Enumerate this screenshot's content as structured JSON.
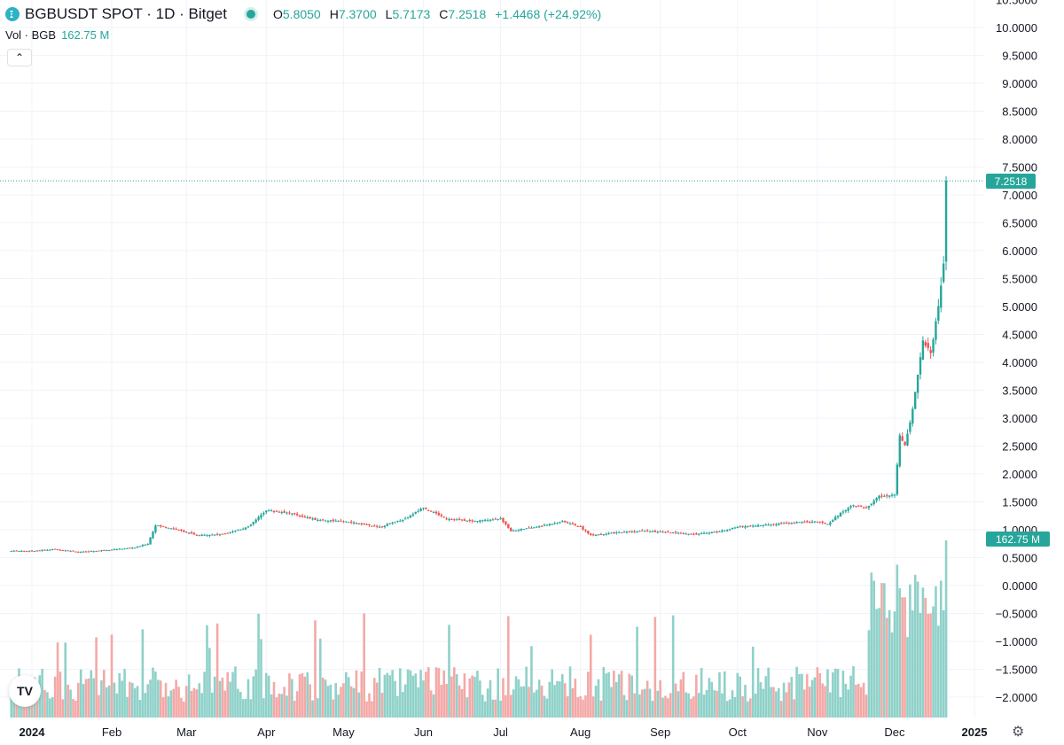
{
  "header": {
    "title": "BGBUSDT SPOT · 1D · Bitget",
    "o_label": "O",
    "o_value": "5.8050",
    "h_label": "H",
    "h_value": "7.3700",
    "l_label": "L",
    "l_value": "5.7173",
    "c_label": "C",
    "c_value": "7.2518",
    "change": "+1.4468 (+24.92%)"
  },
  "volume_legend": {
    "label": "Vol · BGB",
    "value": "162.75 M"
  },
  "colors": {
    "up": "#26a69a",
    "down": "#ef5350",
    "up_vol": "#8fd1c9",
    "down_vol": "#f3a9a7"
  },
  "icons": {
    "symbol": "bitget-logo-icon",
    "collapse": "chevron-up-icon",
    "brand": "tradingview-logo-icon",
    "settings": "gear-icon"
  },
  "chart_data": {
    "type": "candlestick",
    "title": "BGBUSDT SPOT · 1D · Bitget",
    "x_ticks": [
      "2024",
      "Feb",
      "Mar",
      "Apr",
      "May",
      "Jun",
      "Jul",
      "Aug",
      "Sep",
      "Oct",
      "Nov",
      "Dec",
      "2025"
    ],
    "y_ticks": [
      "10.5000",
      "10.0000",
      "9.5000",
      "9.0000",
      "8.5000",
      "8.0000",
      "7.5000",
      "7.0000",
      "6.5000",
      "6.0000",
      "5.5000",
      "5.0000",
      "4.5000",
      "4.0000",
      "3.5000",
      "3.0000",
      "2.5000",
      "2.0000",
      "1.5000",
      "1.0000",
      "0.5000",
      "0.0000",
      "−0.5000",
      "−1.0000",
      "−1.5000",
      "−2.0000"
    ],
    "ylim": [
      -2.3,
      10.5
    ],
    "last_price_label": "7.2518",
    "last_price": 7.2518,
    "last_volume_label": "162.75 M",
    "close_series": [
      {
        "date": "2024-01-01",
        "close": 0.62
      },
      {
        "date": "2024-01-10",
        "close": 0.65
      },
      {
        "date": "2024-01-20",
        "close": 0.6
      },
      {
        "date": "2024-01-31",
        "close": 0.64
      },
      {
        "date": "2024-02-10",
        "close": 0.68
      },
      {
        "date": "2024-02-15",
        "close": 0.75
      },
      {
        "date": "2024-02-18",
        "close": 1.08
      },
      {
        "date": "2024-02-25",
        "close": 1.02
      },
      {
        "date": "2024-03-05",
        "close": 0.9
      },
      {
        "date": "2024-03-15",
        "close": 0.92
      },
      {
        "date": "2024-03-25",
        "close": 1.05
      },
      {
        "date": "2024-04-01",
        "close": 1.35
      },
      {
        "date": "2024-04-10",
        "close": 1.3
      },
      {
        "date": "2024-04-20",
        "close": 1.18
      },
      {
        "date": "2024-05-01",
        "close": 1.15
      },
      {
        "date": "2024-05-15",
        "close": 1.05
      },
      {
        "date": "2024-05-25",
        "close": 1.2
      },
      {
        "date": "2024-06-01",
        "close": 1.4
      },
      {
        "date": "2024-06-10",
        "close": 1.2
      },
      {
        "date": "2024-06-20",
        "close": 1.15
      },
      {
        "date": "2024-07-01",
        "close": 1.2
      },
      {
        "date": "2024-07-05",
        "close": 0.98
      },
      {
        "date": "2024-07-15",
        "close": 1.05
      },
      {
        "date": "2024-07-25",
        "close": 1.15
      },
      {
        "date": "2024-08-01",
        "close": 1.05
      },
      {
        "date": "2024-08-05",
        "close": 0.9
      },
      {
        "date": "2024-08-15",
        "close": 0.95
      },
      {
        "date": "2024-08-25",
        "close": 0.98
      },
      {
        "date": "2024-09-05",
        "close": 0.95
      },
      {
        "date": "2024-09-15",
        "close": 0.92
      },
      {
        "date": "2024-09-25",
        "close": 0.98
      },
      {
        "date": "2024-10-01",
        "close": 1.05
      },
      {
        "date": "2024-10-10",
        "close": 1.08
      },
      {
        "date": "2024-10-20",
        "close": 1.12
      },
      {
        "date": "2024-10-31",
        "close": 1.15
      },
      {
        "date": "2024-11-05",
        "close": 1.1
      },
      {
        "date": "2024-11-10",
        "close": 1.3
      },
      {
        "date": "2024-11-15",
        "close": 1.45
      },
      {
        "date": "2024-11-20",
        "close": 1.38
      },
      {
        "date": "2024-11-25",
        "close": 1.6
      },
      {
        "date": "2024-12-01",
        "close": 1.62
      },
      {
        "date": "2024-12-03",
        "close": 2.7
      },
      {
        "date": "2024-12-05",
        "close": 2.5
      },
      {
        "date": "2024-12-08",
        "close": 3.15
      },
      {
        "date": "2024-12-12",
        "close": 4.4
      },
      {
        "date": "2024-12-15",
        "close": 4.15
      },
      {
        "date": "2024-12-18",
        "close": 5.0
      },
      {
        "date": "2024-12-20",
        "close": 5.8
      },
      {
        "date": "2024-12-21",
        "close": 7.2518
      }
    ]
  }
}
